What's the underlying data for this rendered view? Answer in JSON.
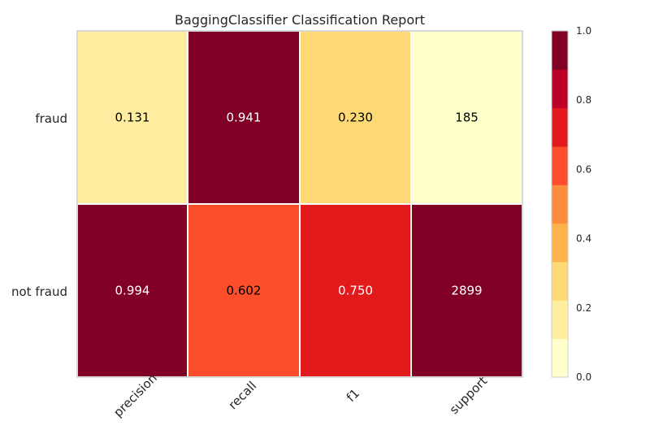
{
  "chart_data": {
    "type": "heatmap",
    "title": "BaggingClassifier Classification Report",
    "rows": [
      "fraud",
      "not fraud"
    ],
    "columns": [
      "precision",
      "recall",
      "f1",
      "support"
    ],
    "values": [
      [
        0.131,
        0.941,
        0.23,
        185
      ],
      [
        0.994,
        0.602,
        0.75,
        2899
      ]
    ],
    "cell_labels": [
      [
        "0.131",
        "0.941",
        "0.230",
        "185"
      ],
      [
        "0.994",
        "0.602",
        "0.750",
        "2899"
      ]
    ],
    "colorbar": {
      "range": [
        0.0,
        1.0
      ],
      "ticks": [
        "0.0",
        "0.2",
        "0.4",
        "0.6",
        "0.8",
        "1.0"
      ],
      "colors": [
        "#ffffcc",
        "#ffeda0",
        "#fed976",
        "#feb24c",
        "#fd8d3c",
        "#fc4e2a",
        "#e31a1c",
        "#bd0026",
        "#800026"
      ]
    },
    "cell_colors": [
      [
        "#ffeda0",
        "#800026",
        "#fed976",
        "#ffffcc"
      ],
      [
        "#800026",
        "#fc4e2a",
        "#e31a1c",
        "#800026"
      ]
    ],
    "text_colors": [
      [
        "#000000",
        "#ffffff",
        "#000000",
        "#000000"
      ],
      [
        "#ffffff",
        "#000000",
        "#ffffff",
        "#ffffff"
      ]
    ]
  }
}
